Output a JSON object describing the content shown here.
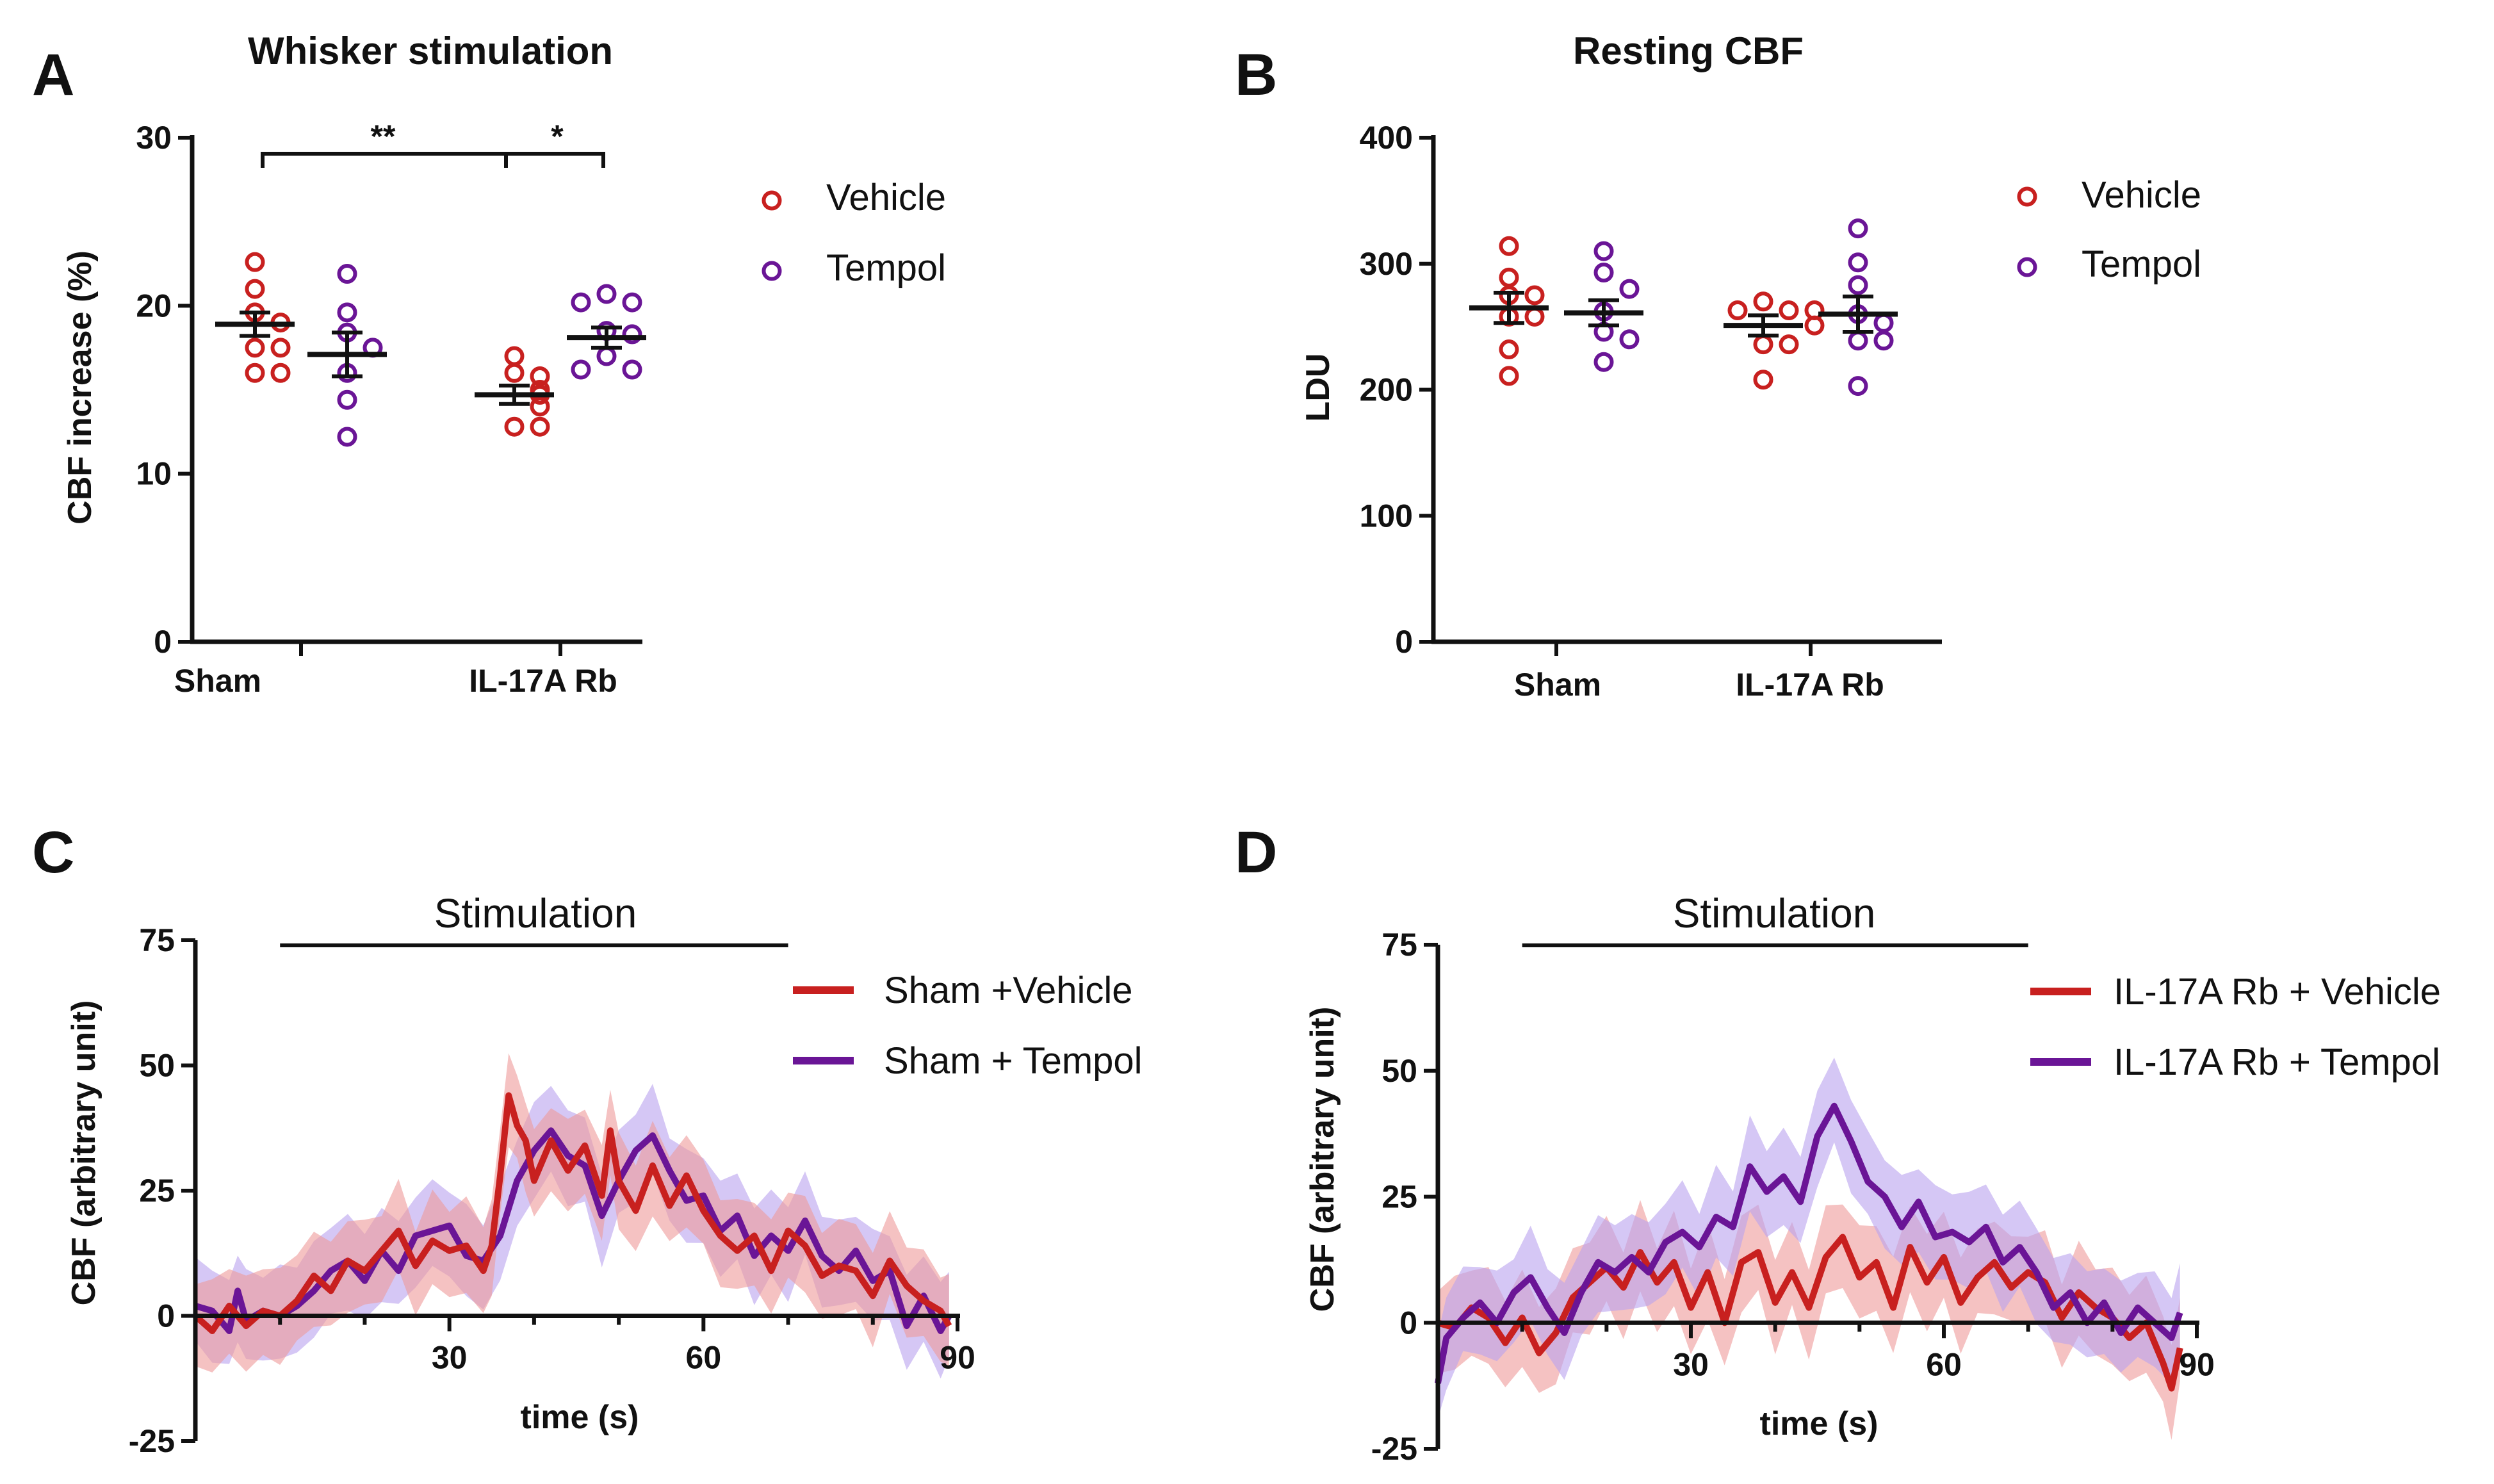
{
  "figure": {
    "colors": {
      "vehicle": "#c8201f",
      "tempol": "#6a1596",
      "vehicle_band": "#ee9a9a",
      "tempol_band": "#b9a2ee",
      "axis": "#111111"
    }
  },
  "chart_data": [
    {
      "panel": "A",
      "type": "scatter",
      "title": "Whisker stimulation",
      "ylabel": "CBF increase  (%)",
      "xlabel": "",
      "ylim": [
        0,
        30
      ],
      "yticks": [
        0,
        10,
        20,
        30
      ],
      "categories": [
        "Sham",
        "IL-17A Rb"
      ],
      "legend": [
        "Vehicle",
        "Tempol"
      ],
      "series": [
        {
          "name": "Vehicle",
          "mean": [
            18.9,
            14.7
          ],
          "sem": [
            0.7,
            0.55
          ],
          "points": [
            [
              22.6,
              21.0,
              19.6,
              19.0,
              17.5,
              17.5,
              16.0,
              16.0
            ],
            [
              17.0,
              16.0,
              15.8,
              15.0,
              14.7,
              14.0,
              12.8,
              12.8
            ]
          ]
        },
        {
          "name": "Tempol",
          "mean": [
            17.1,
            18.1
          ],
          "sem": [
            1.3,
            0.6
          ],
          "points": [
            [
              21.9,
              19.6,
              18.4,
              17.5,
              16.0,
              14.4,
              12.2
            ],
            [
              20.7,
              20.2,
              20.2,
              18.5,
              18.3,
              17.0,
              16.2,
              16.2
            ]
          ]
        }
      ],
      "significance": [
        "**",
        "*"
      ]
    },
    {
      "panel": "B",
      "type": "scatter",
      "title": "Resting CBF",
      "ylabel": "LDU",
      "xlabel": "",
      "ylim": [
        0,
        400
      ],
      "yticks": [
        0,
        100,
        200,
        300,
        400
      ],
      "categories": [
        "Sham",
        "IL-17A Rb"
      ],
      "legend": [
        "Vehicle",
        "Tempol"
      ],
      "series": [
        {
          "name": "Vehicle",
          "mean": [
            265,
            251
          ],
          "sem": [
            12,
            8
          ],
          "points": [
            [
              314,
              289,
              275,
              275,
              258,
              258,
              232,
              211
            ],
            [
              270,
              263,
              263,
              263,
              251,
              236,
              236,
              208
            ]
          ]
        },
        {
          "name": "Tempol",
          "mean": [
            261,
            260
          ],
          "sem": [
            10,
            14
          ],
          "points": [
            [
              310,
              293,
              280,
              262,
              246,
              240,
              222
            ],
            [
              328,
              301,
              283,
              260,
              253,
              239,
              239,
              203
            ]
          ]
        }
      ]
    },
    {
      "panel": "C",
      "type": "line",
      "title": "",
      "annotation": "Stimulation",
      "stimulation_window": [
        10,
        70
      ],
      "xlabel": "time (s)",
      "ylabel": "CBF (arbitrary unit)",
      "xlim": [
        0,
        90
      ],
      "ylim": [
        -25,
        75
      ],
      "xticks": [
        30,
        60,
        90
      ],
      "yticks": [
        -25,
        0,
        25,
        50,
        75
      ],
      "legend": [
        "Sham +Vehicle",
        "Sham + Tempol"
      ],
      "series": [
        {
          "name": "Sham +Vehicle",
          "band": 9,
          "points": [
            [
              0,
              0
            ],
            [
              2,
              -3
            ],
            [
              4,
              2
            ],
            [
              6,
              -2
            ],
            [
              8,
              1
            ],
            [
              10,
              0
            ],
            [
              12,
              3
            ],
            [
              14,
              8
            ],
            [
              16,
              5
            ],
            [
              18,
              11
            ],
            [
              20,
              9
            ],
            [
              22,
              13
            ],
            [
              24,
              17
            ],
            [
              26,
              10
            ],
            [
              28,
              15
            ],
            [
              30,
              13
            ],
            [
              32,
              14
            ],
            [
              34,
              9
            ],
            [
              35,
              14
            ],
            [
              36,
              28
            ],
            [
              37,
              44
            ],
            [
              38,
              38
            ],
            [
              39,
              35
            ],
            [
              40,
              27
            ],
            [
              42,
              35
            ],
            [
              44,
              29
            ],
            [
              46,
              34
            ],
            [
              48,
              24
            ],
            [
              49,
              37
            ],
            [
              50,
              27
            ],
            [
              52,
              21
            ],
            [
              54,
              30
            ],
            [
              56,
              22
            ],
            [
              58,
              28
            ],
            [
              60,
              21
            ],
            [
              62,
              16
            ],
            [
              64,
              13
            ],
            [
              66,
              16
            ],
            [
              68,
              9
            ],
            [
              70,
              17
            ],
            [
              72,
              14
            ],
            [
              74,
              8
            ],
            [
              76,
              10
            ],
            [
              78,
              9
            ],
            [
              80,
              4
            ],
            [
              82,
              11
            ],
            [
              84,
              6
            ],
            [
              86,
              3
            ],
            [
              88,
              1
            ],
            [
              89,
              -2
            ]
          ]
        },
        {
          "name": "Sham + Tempol",
          "band": 9,
          "points": [
            [
              0,
              2
            ],
            [
              2,
              1
            ],
            [
              4,
              -3
            ],
            [
              5,
              5
            ],
            [
              6,
              -1
            ],
            [
              8,
              1
            ],
            [
              10,
              0
            ],
            [
              12,
              2
            ],
            [
              14,
              5
            ],
            [
              16,
              9
            ],
            [
              18,
              11
            ],
            [
              20,
              7
            ],
            [
              22,
              13
            ],
            [
              24,
              9
            ],
            [
              26,
              16
            ],
            [
              28,
              17
            ],
            [
              30,
              18
            ],
            [
              32,
              12
            ],
            [
              34,
              11
            ],
            [
              36,
              16
            ],
            [
              38,
              27
            ],
            [
              40,
              33
            ],
            [
              42,
              37
            ],
            [
              44,
              32
            ],
            [
              46,
              30
            ],
            [
              48,
              20
            ],
            [
              50,
              27
            ],
            [
              52,
              33
            ],
            [
              54,
              36
            ],
            [
              56,
              29
            ],
            [
              58,
              23
            ],
            [
              60,
              24
            ],
            [
              62,
              17
            ],
            [
              64,
              20
            ],
            [
              66,
              12
            ],
            [
              68,
              16
            ],
            [
              70,
              13
            ],
            [
              72,
              19
            ],
            [
              74,
              12
            ],
            [
              76,
              9
            ],
            [
              78,
              13
            ],
            [
              80,
              7
            ],
            [
              82,
              9
            ],
            [
              84,
              -2
            ],
            [
              86,
              4
            ],
            [
              88,
              -3
            ],
            [
              89,
              0
            ]
          ]
        }
      ]
    },
    {
      "panel": "D",
      "type": "line",
      "title": "",
      "annotation": "Stimulation",
      "stimulation_window": [
        10,
        70
      ],
      "xlabel": "time (s)",
      "ylabel": "CBF (arbitrary unit)",
      "xlim": [
        0,
        90
      ],
      "ylim": [
        -25,
        75
      ],
      "xticks": [
        30,
        60,
        90
      ],
      "yticks": [
        -25,
        0,
        25,
        50,
        75
      ],
      "legend": [
        "IL-17A Rb + Vehicle",
        "IL-17A Rb + Tempol"
      ],
      "series": [
        {
          "name": "IL-17A Rb + Vehicle",
          "band": 9,
          "points": [
            [
              0,
              0
            ],
            [
              2,
              -1
            ],
            [
              4,
              3
            ],
            [
              6,
              1
            ],
            [
              8,
              -4
            ],
            [
              10,
              1
            ],
            [
              12,
              -6
            ],
            [
              14,
              -2
            ],
            [
              16,
              5
            ],
            [
              18,
              8
            ],
            [
              20,
              11
            ],
            [
              22,
              7
            ],
            [
              24,
              14
            ],
            [
              26,
              8
            ],
            [
              28,
              12
            ],
            [
              30,
              3
            ],
            [
              32,
              10
            ],
            [
              34,
              0
            ],
            [
              36,
              12
            ],
            [
              38,
              14
            ],
            [
              40,
              4
            ],
            [
              42,
              10
            ],
            [
              44,
              3
            ],
            [
              46,
              13
            ],
            [
              48,
              17
            ],
            [
              50,
              9
            ],
            [
              52,
              12
            ],
            [
              54,
              3
            ],
            [
              56,
              15
            ],
            [
              58,
              8
            ],
            [
              60,
              13
            ],
            [
              62,
              4
            ],
            [
              64,
              9
            ],
            [
              66,
              12
            ],
            [
              68,
              7
            ],
            [
              70,
              10
            ],
            [
              72,
              8
            ],
            [
              74,
              1
            ],
            [
              76,
              6
            ],
            [
              78,
              3
            ],
            [
              80,
              1
            ],
            [
              82,
              -3
            ],
            [
              84,
              0
            ],
            [
              86,
              -8
            ],
            [
              87,
              -13
            ],
            [
              88,
              -5
            ]
          ]
        },
        {
          "name": "IL-17A Rb + Tempol",
          "band": 9,
          "points": [
            [
              0,
              -12
            ],
            [
              1,
              -3
            ],
            [
              3,
              1
            ],
            [
              5,
              4
            ],
            [
              7,
              0
            ],
            [
              9,
              6
            ],
            [
              11,
              9
            ],
            [
              13,
              3
            ],
            [
              15,
              -2
            ],
            [
              17,
              6
            ],
            [
              19,
              12
            ],
            [
              21,
              10
            ],
            [
              23,
              13
            ],
            [
              25,
              10
            ],
            [
              27,
              16
            ],
            [
              29,
              18
            ],
            [
              31,
              15
            ],
            [
              33,
              21
            ],
            [
              35,
              19
            ],
            [
              37,
              31
            ],
            [
              39,
              26
            ],
            [
              41,
              29
            ],
            [
              43,
              24
            ],
            [
              45,
              37
            ],
            [
              47,
              43
            ],
            [
              49,
              36
            ],
            [
              51,
              28
            ],
            [
              53,
              25
            ],
            [
              55,
              19
            ],
            [
              57,
              24
            ],
            [
              59,
              17
            ],
            [
              61,
              18
            ],
            [
              63,
              16
            ],
            [
              65,
              19
            ],
            [
              67,
              12
            ],
            [
              69,
              15
            ],
            [
              71,
              10
            ],
            [
              73,
              3
            ],
            [
              75,
              6
            ],
            [
              77,
              0
            ],
            [
              79,
              4
            ],
            [
              81,
              -2
            ],
            [
              83,
              3
            ],
            [
              85,
              0
            ],
            [
              87,
              -3
            ],
            [
              88,
              2
            ]
          ]
        }
      ]
    }
  ]
}
